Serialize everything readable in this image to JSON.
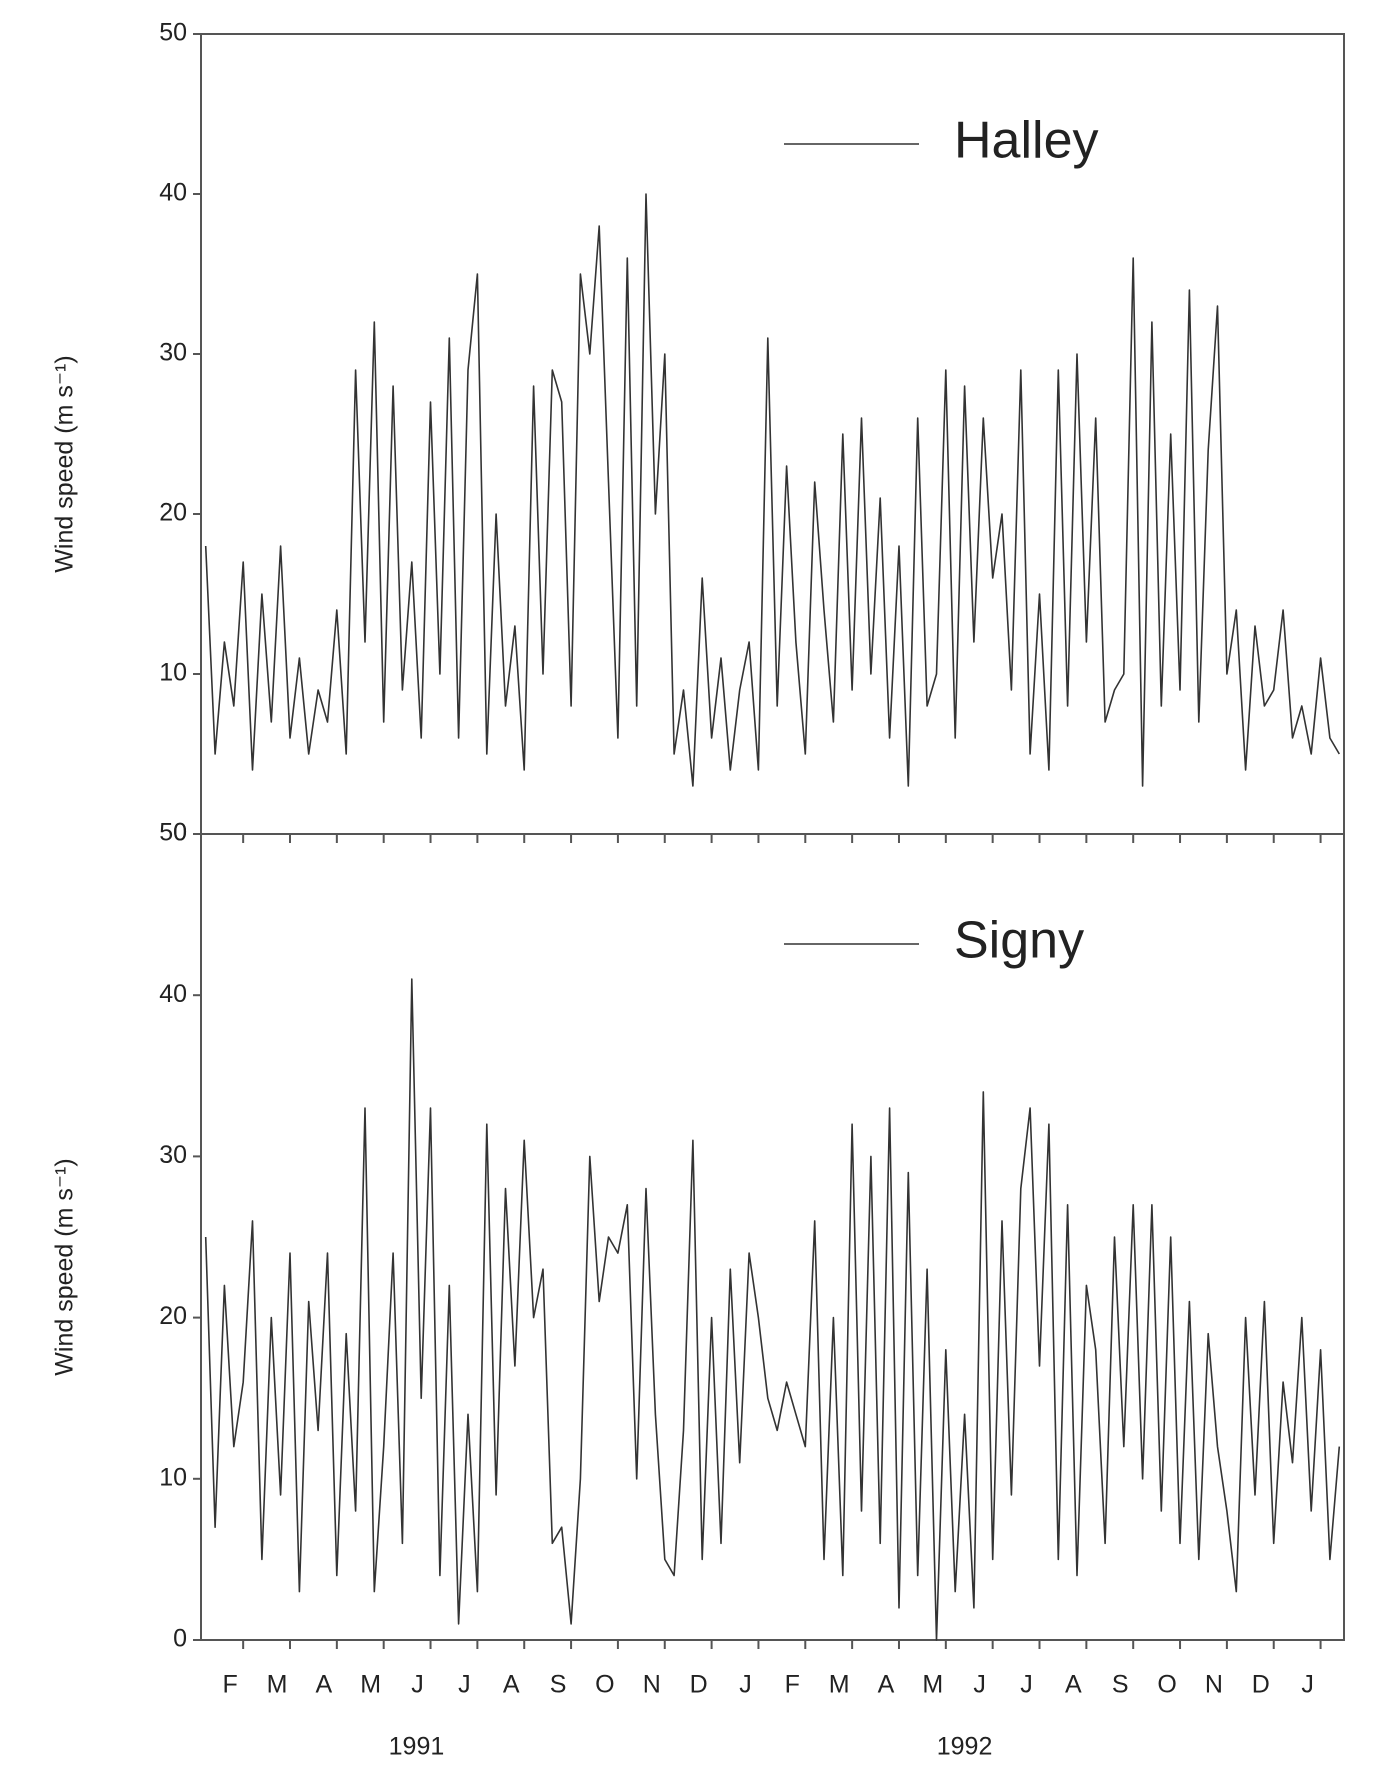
{
  "chart_data": [
    {
      "type": "line",
      "ylabel": "Wind speed (m s⁻¹)",
      "legend": "upper right",
      "series": [
        {
          "name": "Halley",
          "color": "#333333",
          "values": [
            18,
            5,
            12,
            8,
            17,
            4,
            15,
            7,
            18,
            6,
            11,
            5,
            9,
            7,
            14,
            5,
            29,
            12,
            32,
            7,
            28,
            9,
            17,
            6,
            27,
            10,
            31,
            6,
            29,
            35,
            5,
            20,
            8,
            13,
            4,
            28,
            10,
            29,
            27,
            8,
            35,
            30,
            38,
            22,
            6,
            36,
            8,
            40,
            20,
            30,
            5,
            9,
            3,
            16,
            6,
            11,
            4,
            9,
            12,
            4,
            31,
            8,
            23,
            12,
            5,
            22,
            14,
            7,
            25,
            9,
            26,
            10,
            21,
            6,
            18,
            3,
            26,
            8,
            10,
            29,
            6,
            28,
            12,
            26,
            16,
            20,
            9,
            29,
            5,
            15,
            4,
            29,
            8,
            30,
            12,
            26,
            7,
            9,
            10,
            36,
            3,
            32,
            8,
            25,
            9,
            34,
            7,
            24,
            33,
            10,
            14,
            4,
            13,
            8,
            9,
            14,
            6,
            8,
            5,
            11,
            6,
            5
          ]
        }
      ],
      "x": [
        0.2,
        0.4,
        0.6,
        0.8,
        1,
        1.2,
        1.4,
        1.6,
        1.8,
        2,
        2.2,
        2.4,
        2.6,
        2.8,
        3,
        3.2,
        3.4,
        3.6,
        3.8,
        4,
        4.2,
        4.4,
        4.6,
        4.8,
        5,
        5.2,
        5.4,
        5.6,
        5.8,
        6,
        6.2,
        6.4,
        6.6,
        6.8,
        7,
        7.2,
        7.4,
        7.6,
        7.8,
        8,
        8.2,
        8.4,
        8.6,
        8.8,
        9,
        9.2,
        9.4,
        9.6,
        9.8,
        10,
        10.2,
        10.4,
        10.6,
        10.8,
        11,
        11.2,
        11.4,
        11.6,
        11.8,
        12,
        12.2,
        12.4,
        12.6,
        12.8,
        13,
        13.2,
        13.4,
        13.6,
        13.8,
        14,
        14.2,
        14.4,
        14.6,
        14.8,
        15,
        15.2,
        15.4,
        15.6,
        15.8,
        16,
        16.2,
        16.4,
        16.6,
        16.8,
        17,
        17.2,
        17.4,
        17.6,
        17.8,
        18,
        18.2,
        18.4,
        18.6,
        18.8,
        19,
        19.2,
        19.4,
        19.6,
        19.8,
        20,
        20.2,
        20.4,
        20.6,
        20.8,
        21,
        21.2,
        21.4,
        21.6,
        21.8,
        22,
        22.2,
        22.4,
        22.6,
        22.8,
        23,
        23.2,
        23.4,
        23.6,
        23.8,
        24,
        24.2,
        24.4
      ],
      "xlim": [
        0.1,
        24.5
      ],
      "ylim": [
        0,
        50
      ],
      "yticks": [
        0,
        10,
        20,
        30,
        40,
        50
      ],
      "xticks": [
        1,
        2,
        3,
        4,
        5,
        6,
        7,
        8,
        9,
        10,
        11,
        12,
        13,
        14,
        15,
        16,
        17,
        18,
        19,
        20,
        21,
        22,
        23,
        24
      ]
    },
    {
      "type": "line",
      "ylabel": "Wind speed (m s⁻¹)",
      "legend": "upper right",
      "series": [
        {
          "name": "Signy",
          "color": "#333333",
          "values": [
            25,
            7,
            22,
            12,
            16,
            26,
            5,
            20,
            9,
            24,
            3,
            21,
            13,
            24,
            4,
            19,
            8,
            33,
            3,
            12,
            24,
            6,
            41,
            15,
            33,
            4,
            22,
            1,
            14,
            3,
            32,
            9,
            28,
            17,
            31,
            20,
            23,
            6,
            7,
            1,
            10,
            30,
            21,
            25,
            24,
            27,
            10,
            28,
            14,
            5,
            4,
            13,
            31,
            5,
            20,
            6,
            23,
            11,
            24,
            20,
            15,
            13,
            16,
            14,
            12,
            26,
            5,
            20,
            4,
            32,
            8,
            30,
            6,
            33,
            2,
            29,
            4,
            23,
            0,
            18,
            3,
            14,
            2,
            34,
            5,
            26,
            9,
            28,
            33,
            17,
            32,
            5,
            27,
            4,
            22,
            18,
            6,
            25,
            12,
            27,
            10,
            27,
            8,
            25,
            6,
            21,
            5,
            19,
            12,
            8,
            3,
            20,
            9,
            21,
            6,
            16,
            11,
            20,
            8,
            18,
            5,
            12
          ]
        }
      ],
      "x": [
        0.2,
        0.4,
        0.6,
        0.8,
        1,
        1.2,
        1.4,
        1.6,
        1.8,
        2,
        2.2,
        2.4,
        2.6,
        2.8,
        3,
        3.2,
        3.4,
        3.6,
        3.8,
        4,
        4.2,
        4.4,
        4.6,
        4.8,
        5,
        5.2,
        5.4,
        5.6,
        5.8,
        6,
        6.2,
        6.4,
        6.6,
        6.8,
        7,
        7.2,
        7.4,
        7.6,
        7.8,
        8,
        8.2,
        8.4,
        8.6,
        8.8,
        9,
        9.2,
        9.4,
        9.6,
        9.8,
        10,
        10.2,
        10.4,
        10.6,
        10.8,
        11,
        11.2,
        11.4,
        11.6,
        11.8,
        12,
        12.2,
        12.4,
        12.6,
        12.8,
        13,
        13.2,
        13.4,
        13.6,
        13.8,
        14,
        14.2,
        14.4,
        14.6,
        14.8,
        15,
        15.2,
        15.4,
        15.6,
        15.8,
        16,
        16.2,
        16.4,
        16.6,
        16.8,
        17,
        17.2,
        17.4,
        17.6,
        17.8,
        18,
        18.2,
        18.4,
        18.6,
        18.8,
        19,
        19.2,
        19.4,
        19.6,
        19.8,
        20,
        20.2,
        20.4,
        20.6,
        20.8,
        21,
        21.2,
        21.4,
        21.6,
        21.8,
        22,
        22.2,
        22.4,
        22.6,
        22.8,
        23,
        23.2,
        23.4,
        23.6,
        23.8,
        24,
        24.2,
        24.4
      ],
      "xlim": [
        0.1,
        24.5
      ],
      "ylim": [
        0,
        50
      ],
      "yticks": [
        0,
        10,
        20,
        30,
        40,
        50
      ],
      "xticks": [
        {
          "value": 1,
          "label": "F"
        },
        {
          "value": 2,
          "label": "M"
        },
        {
          "value": 3,
          "label": "A"
        },
        {
          "value": 4,
          "label": "M"
        },
        {
          "value": 5,
          "label": "J"
        },
        {
          "value": 6,
          "label": "J"
        },
        {
          "value": 7,
          "label": "A"
        },
        {
          "value": 8,
          "label": "S"
        },
        {
          "value": 9,
          "label": "O"
        },
        {
          "value": 10,
          "label": "N"
        },
        {
          "value": 11,
          "label": "D"
        },
        {
          "value": 12,
          "label": "J"
        },
        {
          "value": 13,
          "label": "F"
        },
        {
          "value": 14,
          "label": "M"
        },
        {
          "value": 15,
          "label": "A"
        },
        {
          "value": 16,
          "label": "M"
        },
        {
          "value": 17,
          "label": "J"
        },
        {
          "value": 18,
          "label": "J"
        },
        {
          "value": 19,
          "label": "A"
        },
        {
          "value": 20,
          "label": "S"
        },
        {
          "value": 21,
          "label": "O"
        },
        {
          "value": 22,
          "label": "N"
        },
        {
          "value": 23,
          "label": "D"
        },
        {
          "value": 24,
          "label": "J"
        }
      ],
      "annotations": [
        {
          "text": "1991",
          "x": 4.7
        },
        {
          "text": "1992",
          "x": 16.4
        }
      ]
    }
  ]
}
